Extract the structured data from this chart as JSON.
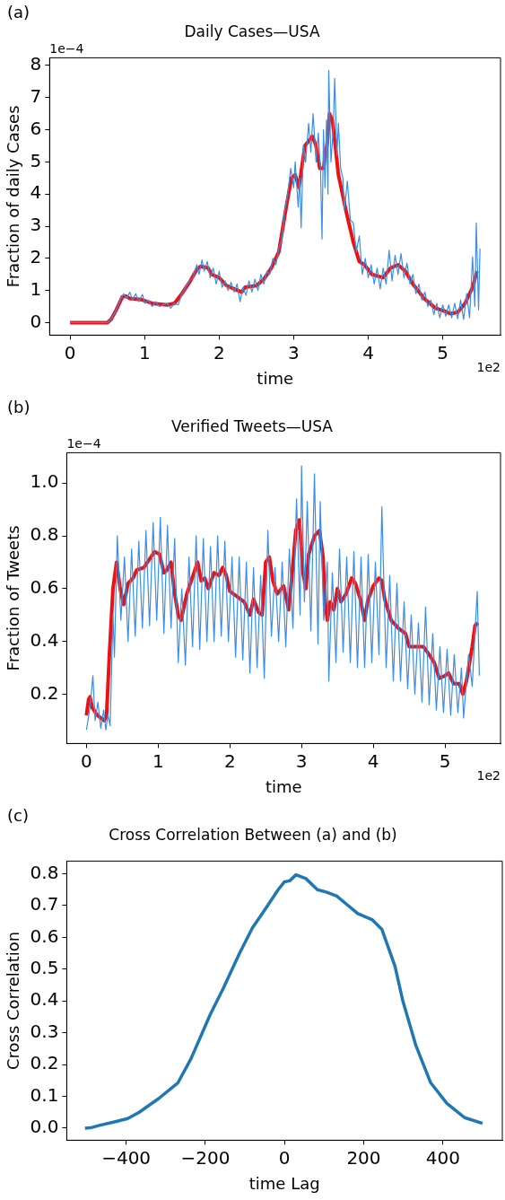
{
  "chart_data": [
    {
      "type": "line",
      "title": "Daily Cases—USA",
      "xlabel": "time",
      "ylabel": "Fraction of daily Cases",
      "annotations": [
        "(a)",
        "1e−4",
        "1e2"
      ],
      "xlim": [
        -0.275,
        5.775
      ],
      "ylim": [
        -0.39,
        8.24
      ],
      "xticks": [
        0,
        1,
        2,
        3,
        4,
        5
      ],
      "yticks": [
        0,
        1,
        2,
        3,
        4,
        5,
        6,
        7,
        8
      ],
      "grid": false,
      "legend": false,
      "marker": "none",
      "series": [
        {
          "color": "#3a8ee6",
          "x": [
            0,
            0.5,
            0.55,
            0.62,
            0.68,
            0.72,
            0.76,
            0.8,
            0.84,
            0.88,
            0.92,
            0.97,
            1.0,
            1.05,
            1.1,
            1.15,
            1.2,
            1.3,
            1.35,
            1.4,
            1.45,
            1.5,
            1.55,
            1.6,
            1.65,
            1.7,
            1.73,
            1.77,
            1.8,
            1.84,
            1.88,
            1.92,
            1.96,
            2.0,
            2.04,
            2.08,
            2.12,
            2.16,
            2.2,
            2.24,
            2.28,
            2.32,
            2.36,
            2.4,
            2.44,
            2.48,
            2.52,
            2.56,
            2.6,
            2.64,
            2.68,
            2.72,
            2.76,
            2.8,
            2.84,
            2.88,
            2.92,
            2.96,
            3.0,
            3.02,
            3.06,
            3.08,
            3.1,
            3.13,
            3.16,
            3.2,
            3.23,
            3.26,
            3.3,
            3.33,
            3.36,
            3.38,
            3.4,
            3.42,
            3.44,
            3.46,
            3.47,
            3.5,
            3.53,
            3.55,
            3.58,
            3.6,
            3.63,
            3.66,
            3.68,
            3.72,
            3.76,
            3.8,
            3.84,
            3.88,
            3.92,
            3.96,
            4.0,
            4.04,
            4.08,
            4.12,
            4.16,
            4.2,
            4.24,
            4.28,
            4.32,
            4.36,
            4.4,
            4.44,
            4.48,
            4.52,
            4.56,
            4.6,
            4.64,
            4.68,
            4.72,
            4.76,
            4.8,
            4.84,
            4.88,
            4.92,
            4.96,
            5.0,
            5.04,
            5.08,
            5.12,
            5.16,
            5.2,
            5.24,
            5.28,
            5.32,
            5.36,
            5.4,
            5.43,
            5.45,
            5.48,
            5.5
          ],
          "values": [
            0,
            0,
            0.1,
            0.4,
            0.75,
            0.9,
            0.75,
            0.95,
            0.7,
            0.9,
            0.65,
            0.88,
            0.6,
            0.7,
            0.5,
            0.65,
            0.5,
            0.6,
            0.45,
            0.6,
            0.55,
            0.9,
            1.1,
            1.3,
            1.4,
            1.8,
            1.5,
            1.95,
            1.6,
            1.9,
            1.4,
            1.7,
            1.2,
            1.6,
            1.1,
            1.3,
            1.0,
            1.25,
            0.95,
            1.2,
            0.65,
            1.1,
            0.85,
            1.3,
            0.95,
            1.35,
            1.0,
            1.5,
            1.2,
            1.6,
            1.5,
            2.0,
            1.8,
            2.3,
            2.6,
            3.5,
            4.0,
            4.8,
            4.2,
            5.0,
            3.6,
            4.5,
            2.95,
            5.5,
            5.0,
            6.2,
            5.3,
            6.5,
            5.0,
            5.9,
            4.7,
            2.6,
            6.0,
            4.2,
            6.3,
            4.0,
            7.85,
            5.0,
            6.0,
            7.6,
            5.2,
            6.2,
            4.8,
            4.5,
            3.5,
            4.4,
            3.2,
            3.1,
            2.2,
            2.7,
            1.5,
            2.0,
            1.4,
            1.8,
            1.2,
            1.7,
            1.05,
            1.7,
            1.2,
            2.25,
            1.3,
            2.1,
            1.5,
            2.15,
            1.4,
            1.85,
            1.2,
            1.5,
            0.9,
            1.2,
            0.7,
            0.95,
            0.5,
            0.7,
            0.25,
            0.6,
            0.15,
            0.55,
            0.2,
            0.55,
            0.15,
            0.6,
            0.12,
            0.7,
            0.1,
            0.9,
            0.15,
            2.05,
            0.5,
            3.1,
            0.4,
            2.3
          ]
        },
        {
          "color": "#ee1111",
          "x": [
            0,
            0.5,
            0.55,
            0.62,
            0.7,
            0.75,
            0.8,
            0.95,
            1.1,
            1.3,
            1.4,
            1.5,
            1.6,
            1.7,
            1.75,
            1.85,
            1.9,
            2.0,
            2.1,
            2.2,
            2.3,
            2.35,
            2.5,
            2.6,
            2.7,
            2.8,
            2.9,
            2.97,
            3.02,
            3.07,
            3.15,
            3.25,
            3.3,
            3.35,
            3.4,
            3.45,
            3.48,
            3.52,
            3.6,
            3.7,
            3.8,
            3.88,
            3.95,
            4.05,
            4.2,
            4.3,
            4.4,
            4.5,
            4.6,
            4.75,
            4.9,
            5.0,
            5.1,
            5.2,
            5.3,
            5.4,
            5.46
          ],
          "values": [
            0,
            0,
            0.1,
            0.4,
            0.8,
            0.82,
            0.75,
            0.72,
            0.6,
            0.55,
            0.6,
            0.9,
            1.25,
            1.65,
            1.75,
            1.7,
            1.5,
            1.4,
            1.15,
            1.05,
            0.95,
            1.1,
            1.15,
            1.35,
            1.7,
            2.2,
            3.6,
            4.5,
            4.6,
            4.2,
            5.5,
            5.8,
            5.5,
            4.8,
            4.8,
            5.6,
            6.5,
            6.3,
            4.6,
            3.5,
            2.5,
            1.9,
            1.8,
            1.5,
            1.4,
            1.7,
            1.8,
            1.6,
            1.2,
            0.75,
            0.45,
            0.38,
            0.28,
            0.32,
            0.6,
            1.1,
            1.6
          ]
        }
      ]
    },
    {
      "type": "line",
      "title": "Verified Tweets—USA",
      "xlabel": "time",
      "ylabel": "Fraction of Tweets",
      "annotations": [
        "(b)",
        "1e−4",
        "1e2"
      ],
      "xlim": [
        -0.275,
        5.775
      ],
      "ylim": [
        0.013,
        1.115
      ],
      "xticks": [
        0,
        1,
        2,
        3,
        4,
        5
      ],
      "yticks": [
        0.2,
        0.4,
        0.6,
        0.8,
        {
          "value": 1,
          "label": "1.0"
        }
      ],
      "grid": false,
      "legend": false,
      "marker": "none",
      "series": [
        {
          "color": "#3a8ee6",
          "x": [
            0,
            0.05,
            0.09,
            0.12,
            0.16,
            0.2,
            0.24,
            0.27,
            0.3,
            0.33,
            0.37,
            0.39,
            0.43,
            0.48,
            0.53,
            0.58,
            0.63,
            0.68,
            0.73,
            0.78,
            0.83,
            0.88,
            0.93,
            0.98,
            1.03,
            1.08,
            1.13,
            1.18,
            1.23,
            1.28,
            1.33,
            1.38,
            1.43,
            1.48,
            1.53,
            1.58,
            1.63,
            1.68,
            1.73,
            1.78,
            1.83,
            1.88,
            1.93,
            1.98,
            2.03,
            2.08,
            2.13,
            2.18,
            2.23,
            2.28,
            2.33,
            2.38,
            2.43,
            2.48,
            2.53,
            2.58,
            2.63,
            2.68,
            2.73,
            2.78,
            2.83,
            2.88,
            2.93,
            2.98,
            3.0,
            3.04,
            3.08,
            3.13,
            3.18,
            3.23,
            3.26,
            3.31,
            3.36,
            3.38,
            3.43,
            3.48,
            3.53,
            3.58,
            3.63,
            3.68,
            3.73,
            3.78,
            3.83,
            3.88,
            3.93,
            3.98,
            4.03,
            4.08,
            4.12,
            4.18,
            4.23,
            4.28,
            4.33,
            4.38,
            4.43,
            4.48,
            4.53,
            4.58,
            4.63,
            4.68,
            4.73,
            4.78,
            4.83,
            4.88,
            4.93,
            4.98,
            5.03,
            5.08,
            5.13,
            5.18,
            5.23,
            5.26,
            5.33,
            5.38,
            5.45,
            5.48
          ],
          "values": [
            0.065,
            0.15,
            0.27,
            0.1,
            0.17,
            0.07,
            0.14,
            0.065,
            0.12,
            0.08,
            0.5,
            0.34,
            0.8,
            0.48,
            0.72,
            0.4,
            0.75,
            0.42,
            0.78,
            0.45,
            0.82,
            0.46,
            0.85,
            0.48,
            0.87,
            0.43,
            0.84,
            0.45,
            0.79,
            0.32,
            0.6,
            0.31,
            0.72,
            0.38,
            0.8,
            0.37,
            0.79,
            0.4,
            0.76,
            0.4,
            0.8,
            0.42,
            0.78,
            0.4,
            0.72,
            0.34,
            0.72,
            0.33,
            0.7,
            0.28,
            0.68,
            0.3,
            0.65,
            0.26,
            0.82,
            0.42,
            0.68,
            0.4,
            0.7,
            0.38,
            0.75,
            0.45,
            0.94,
            0.5,
            1.065,
            0.55,
            0.93,
            0.44,
            1.035,
            0.39,
            0.93,
            0.48,
            0.7,
            0.25,
            0.66,
            0.32,
            0.75,
            0.36,
            0.72,
            0.32,
            0.74,
            0.3,
            0.72,
            0.3,
            0.73,
            0.32,
            0.7,
            0.35,
            0.91,
            0.3,
            0.65,
            0.25,
            0.62,
            0.25,
            0.55,
            0.22,
            0.5,
            0.2,
            0.47,
            0.17,
            0.53,
            0.16,
            0.43,
            0.14,
            0.38,
            0.13,
            0.37,
            0.12,
            0.35,
            0.13,
            0.3,
            0.11,
            0.35,
            0.23,
            0.59,
            0.27
          ]
        },
        {
          "color": "#ee1111",
          "x": [
            0,
            0.03,
            0.05,
            0.08,
            0.15,
            0.25,
            0.28,
            0.32,
            0.37,
            0.42,
            0.47,
            0.52,
            0.58,
            0.65,
            0.7,
            0.8,
            0.9,
            0.95,
            1.02,
            1.08,
            1.12,
            1.18,
            1.22,
            1.28,
            1.32,
            1.4,
            1.5,
            1.55,
            1.6,
            1.65,
            1.7,
            1.78,
            1.85,
            1.9,
            1.95,
            2.0,
            2.1,
            2.2,
            2.28,
            2.33,
            2.4,
            2.45,
            2.5,
            2.55,
            2.6,
            2.66,
            2.75,
            2.82,
            2.86,
            2.92,
            2.97,
            3.02,
            3.06,
            3.1,
            3.18,
            3.25,
            3.3,
            3.33,
            3.36,
            3.4,
            3.45,
            3.5,
            3.55,
            3.62,
            3.7,
            3.75,
            3.82,
            3.88,
            3.92,
            4.0,
            4.08,
            4.12,
            4.16,
            4.25,
            4.35,
            4.45,
            4.5,
            4.6,
            4.7,
            4.78,
            4.85,
            4.92,
            5.0,
            5.05,
            5.12,
            5.2,
            5.25,
            5.3,
            5.38,
            5.42,
            5.46
          ],
          "values": [
            0.12,
            0.18,
            0.19,
            0.15,
            0.12,
            0.1,
            0.12,
            0.35,
            0.6,
            0.7,
            0.6,
            0.54,
            0.62,
            0.64,
            0.67,
            0.68,
            0.72,
            0.74,
            0.73,
            0.66,
            0.67,
            0.7,
            0.6,
            0.5,
            0.48,
            0.58,
            0.66,
            0.7,
            0.63,
            0.64,
            0.6,
            0.66,
            0.65,
            0.68,
            0.65,
            0.59,
            0.57,
            0.55,
            0.5,
            0.56,
            0.51,
            0.5,
            0.7,
            0.72,
            0.63,
            0.58,
            0.61,
            0.52,
            0.63,
            0.82,
            0.86,
            0.66,
            0.6,
            0.73,
            0.8,
            0.82,
            0.72,
            0.55,
            0.48,
            0.55,
            0.52,
            0.6,
            0.55,
            0.58,
            0.64,
            0.62,
            0.56,
            0.48,
            0.55,
            0.61,
            0.64,
            0.63,
            0.56,
            0.48,
            0.45,
            0.43,
            0.38,
            0.38,
            0.38,
            0.35,
            0.32,
            0.26,
            0.27,
            0.28,
            0.24,
            0.24,
            0.2,
            0.25,
            0.38,
            0.46,
            0.47
          ]
        }
      ]
    },
    {
      "type": "line",
      "title": "Cross Correlation Between (a) and (b)",
      "xlabel": "time Lag",
      "ylabel": "Cross Correlation",
      "annotations": [
        "(c)"
      ],
      "xlim": [
        -550,
        550
      ],
      "ylim": [
        -0.038,
        0.84
      ],
      "xticks": [
        {
          "value": -400,
          "label": "−400"
        },
        {
          "value": -200,
          "label": "−200"
        },
        0,
        200,
        400
      ],
      "yticks": [
        {
          "value": 0,
          "label": "0.0"
        },
        0.1,
        0.2,
        0.3,
        0.4,
        0.5,
        0.6,
        0.7,
        0.8
      ],
      "grid": false,
      "legend": false,
      "marker": "none",
      "series": [
        {
          "color": "#1f77b4",
          "x": [
            -504,
            -490,
            -470,
            -425,
            -396,
            -367,
            -318,
            -269,
            -236,
            -208,
            -187,
            -155,
            -114,
            -81,
            -48,
            -16,
            0,
            13,
            29,
            54,
            83,
            107,
            132,
            156,
            185,
            222,
            246,
            279,
            299,
            332,
            369,
            410,
            455,
            500
          ],
          "values": [
            0,
            0.001,
            0.008,
            0.021,
            0.03,
            0.05,
            0.093,
            0.143,
            0.219,
            0.299,
            0.359,
            0.439,
            0.549,
            0.63,
            0.69,
            0.75,
            0.775,
            0.778,
            0.797,
            0.785,
            0.75,
            0.742,
            0.73,
            0.705,
            0.675,
            0.655,
            0.625,
            0.509,
            0.399,
            0.259,
            0.143,
            0.078,
            0.033,
            0.015
          ]
        }
      ]
    }
  ]
}
